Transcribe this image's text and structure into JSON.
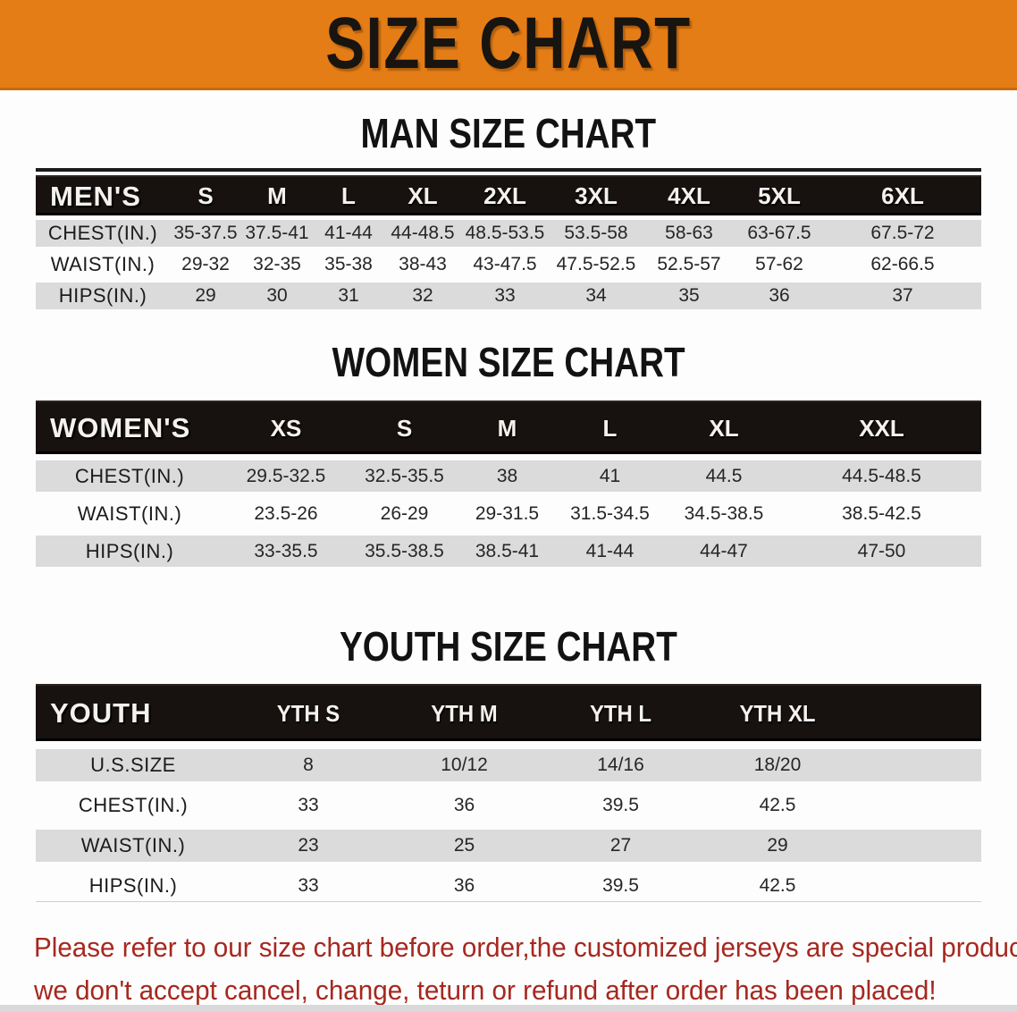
{
  "banner": {
    "title": "SIZE CHART"
  },
  "men": {
    "heading": "MAN SIZE CHART",
    "corner": "MEN'S",
    "columns": [
      "S",
      "M",
      "L",
      "XL",
      "2XL",
      "3XL",
      "4XL",
      "5XL",
      "6XL"
    ],
    "rows": [
      {
        "label": "CHEST(IN.)",
        "values": [
          "35-37.5",
          "37.5-41",
          "41-44",
          "44-48.5",
          "48.5-53.5",
          "53.5-58",
          "58-63",
          "63-67.5",
          "67.5-72"
        ]
      },
      {
        "label": "WAIST(IN.)",
        "values": [
          "29-32",
          "32-35",
          "35-38",
          "38-43",
          "43-47.5",
          "47.5-52.5",
          "52.5-57",
          "57-62",
          "62-66.5"
        ]
      },
      {
        "label": "HIPS(IN.)",
        "values": [
          "29",
          "30",
          "31",
          "32",
          "33",
          "34",
          "35",
          "36",
          "37"
        ]
      }
    ]
  },
  "women": {
    "heading": "WOMEN SIZE CHART",
    "corner": "WOMEN'S",
    "columns": [
      "XS",
      "S",
      "M",
      "L",
      "XL",
      "XXL"
    ],
    "rows": [
      {
        "label": "CHEST(IN.)",
        "values": [
          "29.5-32.5",
          "32.5-35.5",
          "38",
          "41",
          "44.5",
          "44.5-48.5"
        ]
      },
      {
        "label": "WAIST(IN.)",
        "values": [
          "23.5-26",
          "26-29",
          "29-31.5",
          "31.5-34.5",
          "34.5-38.5",
          "38.5-42.5"
        ]
      },
      {
        "label": "HIPS(IN.)",
        "values": [
          "33-35.5",
          "35.5-38.5",
          "38.5-41",
          "41-44",
          "44-47",
          "47-50"
        ]
      }
    ]
  },
  "youth": {
    "heading": "YOUTH SIZE CHART",
    "corner": "YOUTH",
    "columns": [
      "YTH S",
      "YTH M",
      "YTH L",
      "YTH XL"
    ],
    "rows": [
      {
        "label": "U.S.SIZE",
        "values": [
          "8",
          "10/12",
          "14/16",
          "18/20"
        ]
      },
      {
        "label": "CHEST(IN.)",
        "values": [
          "33",
          "36",
          "39.5",
          "42.5"
        ]
      },
      {
        "label": "WAIST(IN.)",
        "values": [
          "23",
          "25",
          "27",
          "29"
        ]
      },
      {
        "label": "HIPS(IN.)",
        "values": [
          "33",
          "36",
          "39.5",
          "42.5"
        ]
      }
    ]
  },
  "disclaimer": {
    "line1": "Please refer to our size chart before order,the customized jerseys are special products,",
    "line2": "we don't accept cancel, change, teturn or refund after order has been placed!"
  },
  "colors": {
    "banner_orange": "#E57D16",
    "header_band_black": "#17120F",
    "row_gray": "#DBDBDB",
    "disclaimer_red": "#A6281F"
  }
}
